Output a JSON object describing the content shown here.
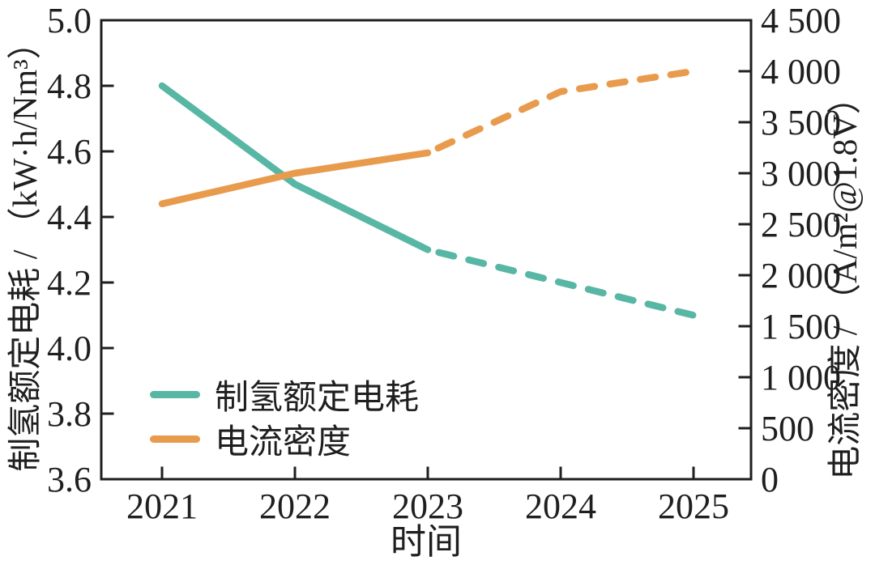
{
  "figure": {
    "background": "#ffffff",
    "axis_color": "#1f1f1f",
    "text_color": "#1f1f1f"
  },
  "chart_data": {
    "type": "line",
    "title": "",
    "xlabel": "时间",
    "x": [
      2021,
      2022,
      2023,
      2024,
      2025
    ],
    "x_tick_labels": [
      "2021",
      "2022",
      "2023",
      "2024",
      "2025"
    ],
    "left_axis": {
      "label": "制氢额定电耗 / （kW·h/Nm³）",
      "min": 3.6,
      "max": 5.0,
      "tick_values": [
        5.0,
        4.8,
        4.6,
        4.4,
        4.2,
        4.0,
        3.8,
        3.6
      ],
      "tick_labels": [
        "5.0",
        "4.8",
        "4.6",
        "4.4",
        "4.2",
        "4.0",
        "3.8",
        "3.6"
      ]
    },
    "right_axis": {
      "label": "电流密度 / （A/m²@1.8V）",
      "min": 0,
      "max": 4500,
      "tick_values": [
        4500,
        4000,
        3500,
        3000,
        2500,
        2000,
        1500,
        1000,
        500,
        0
      ],
      "tick_labels": [
        "4 500",
        "4 000",
        "3 500",
        "3 000",
        "2 500",
        "2 000",
        "1 500",
        "1 000",
        "500",
        "0"
      ]
    },
    "series": [
      {
        "name": "制氢额定电耗",
        "axis": "left",
        "color": "#58b7a4",
        "values": [
          4.8,
          4.5,
          4.3,
          4.2,
          4.1
        ],
        "solid_until_x": 2023,
        "style_note": "solid 2021-2023, dashed 2023-2025"
      },
      {
        "name": "电流密度",
        "axis": "right",
        "color": "#e99b4d",
        "values": [
          2700,
          3000,
          3200,
          3800,
          4000
        ],
        "solid_until_x": 2023,
        "style_note": "solid 2021-2023, dashed 2023-2025"
      }
    ],
    "legend": {
      "position": "lower-left",
      "entries": [
        "制氢额定电耗",
        "电流密度"
      ]
    },
    "grid": "off"
  }
}
